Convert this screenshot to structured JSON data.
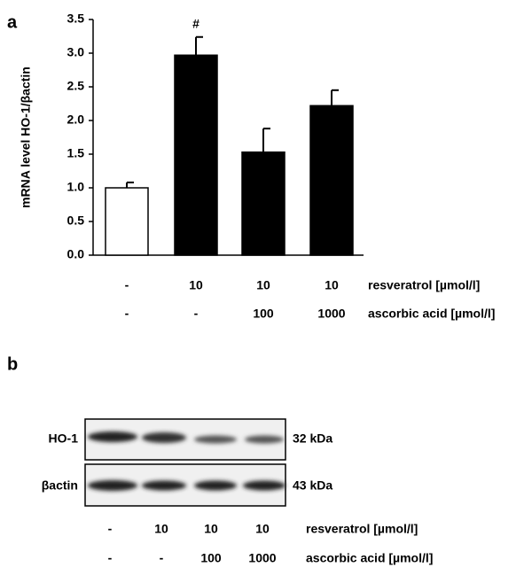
{
  "panel_labels": [
    "a",
    "b"
  ],
  "chart_data": {
    "type": "bar",
    "ylabel": "mRNA level HO-1/βactin",
    "categories": [
      null,
      null,
      null,
      null
    ],
    "values": [
      1.0,
      2.97,
      1.53,
      2.22
    ],
    "errors": [
      0.08,
      0.27,
      0.35,
      0.23
    ],
    "colors": [
      "#ffffff",
      "#000000",
      "#000000",
      "#000000"
    ],
    "annotations": [
      null,
      "#",
      null,
      null
    ],
    "ylim": [
      0,
      3.5
    ],
    "yticks": [
      {
        "value": 0,
        "label": "0.0"
      },
      {
        "value": 0.5,
        "label": "0.5"
      },
      {
        "value": 1,
        "label": "1.0"
      },
      {
        "value": 1.5,
        "label": "1.5"
      },
      {
        "value": 2,
        "label": "2.0"
      },
      {
        "value": 2.5,
        "label": "2.5"
      },
      {
        "value": 3,
        "label": "3.0"
      },
      {
        "value": 3.5,
        "label": "3.5"
      }
    ],
    "conditions": [
      {
        "name": "resveratrol [µmol/l]",
        "values": [
          "-",
          "10",
          "10",
          "10"
        ]
      },
      {
        "name": "ascorbic acid [µmol/l]",
        "values": [
          "-",
          "-",
          "100",
          "1000"
        ]
      }
    ]
  },
  "blot": {
    "rows": [
      {
        "label": "HO-1",
        "size": "32 kDa"
      },
      {
        "label": "βactin",
        "size": "43 kDa"
      }
    ],
    "conditions": [
      {
        "name": "resveratrol [µmol/l]",
        "values": [
          "-",
          "10",
          "10",
          "10"
        ]
      },
      {
        "name": "ascorbic acid [µmol/l]",
        "values": [
          "-",
          "-",
          "100",
          "1000"
        ]
      }
    ]
  }
}
